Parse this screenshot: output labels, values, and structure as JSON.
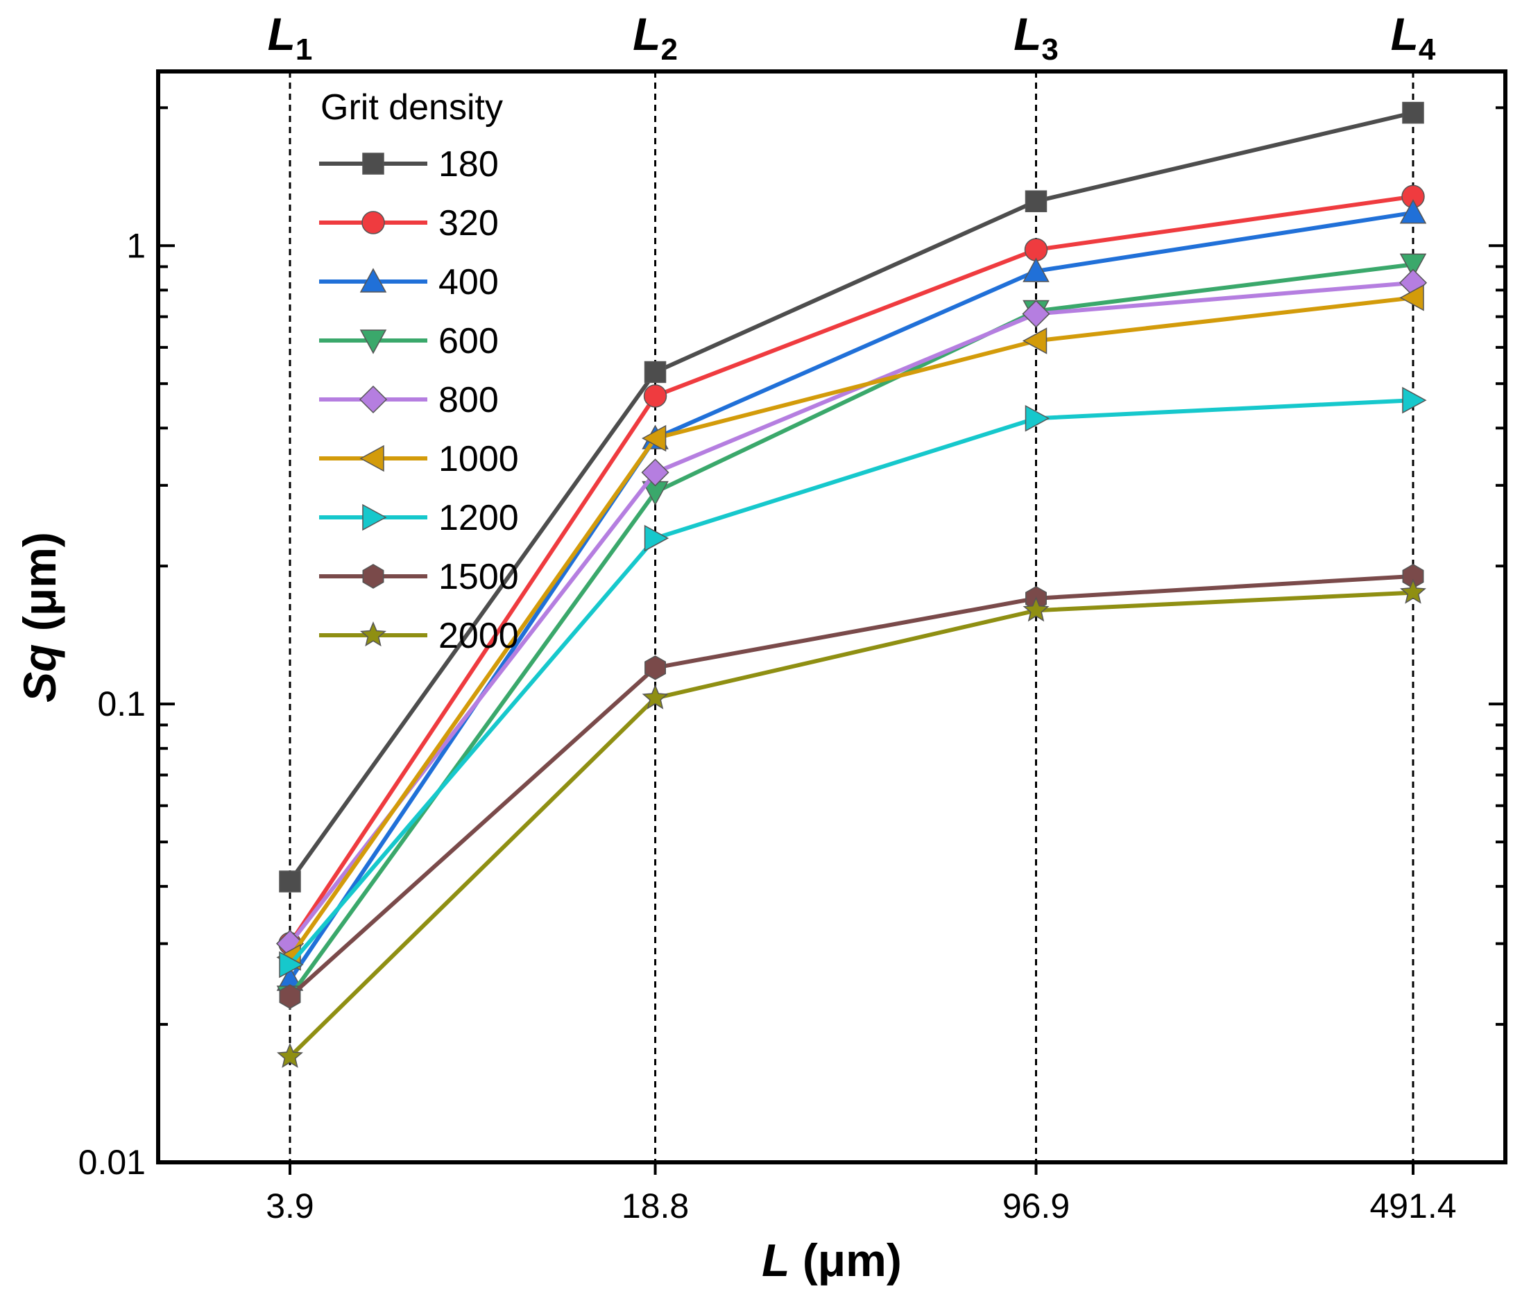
{
  "chart_data": {
    "type": "line",
    "title": "",
    "xlabel_main": "L",
    "xlabel_unit": " (μm)",
    "ylabel_main": "Sq",
    "ylabel_unit": " (μm)",
    "yscale": "log",
    "ylim": [
      0.01,
      2.4
    ],
    "x_categories": [
      "3.9",
      "18.8",
      "96.9",
      "491.4"
    ],
    "x_values": [
      3.9,
      18.8,
      96.9,
      491.4
    ],
    "top_labels": [
      {
        "main": "L",
        "sub": "1"
      },
      {
        "main": "L",
        "sub": "2"
      },
      {
        "main": "L",
        "sub": "3"
      },
      {
        "main": "L",
        "sub": "4"
      }
    ],
    "y_tick_labels": [
      {
        "value": 0.01,
        "label": "0.01"
      },
      {
        "value": 0.1,
        "label": "0.1"
      },
      {
        "value": 1,
        "label": "1"
      }
    ],
    "legend_title": "Grit density",
    "legend_position": "top-left",
    "series": [
      {
        "name": "180",
        "color": "#4d4d4d",
        "marker": "square",
        "values": [
          0.041,
          0.53,
          1.25,
          1.95
        ]
      },
      {
        "name": "320",
        "color": "#ef3b3f",
        "marker": "circle",
        "values": [
          0.03,
          0.47,
          0.98,
          1.28
        ]
      },
      {
        "name": "400",
        "color": "#2070d8",
        "marker": "triangle-up",
        "values": [
          0.025,
          0.38,
          0.88,
          1.18
        ]
      },
      {
        "name": "600",
        "color": "#3aa86b",
        "marker": "triangle-down",
        "values": [
          0.023,
          0.29,
          0.72,
          0.91
        ]
      },
      {
        "name": "800",
        "color": "#b57ee0",
        "marker": "diamond",
        "values": [
          0.03,
          0.32,
          0.71,
          0.83
        ]
      },
      {
        "name": "1000",
        "color": "#d39b0a",
        "marker": "triangle-left",
        "values": [
          0.028,
          0.38,
          0.62,
          0.77
        ]
      },
      {
        "name": "1200",
        "color": "#16c8cc",
        "marker": "triangle-right",
        "values": [
          0.027,
          0.23,
          0.42,
          0.46
        ]
      },
      {
        "name": "1500",
        "color": "#7a4a4a",
        "marker": "hexagon",
        "values": [
          0.023,
          0.12,
          0.17,
          0.19
        ]
      },
      {
        "name": "2000",
        "color": "#8f8f12",
        "marker": "star",
        "values": [
          0.017,
          0.103,
          0.16,
          0.175
        ]
      }
    ]
  }
}
